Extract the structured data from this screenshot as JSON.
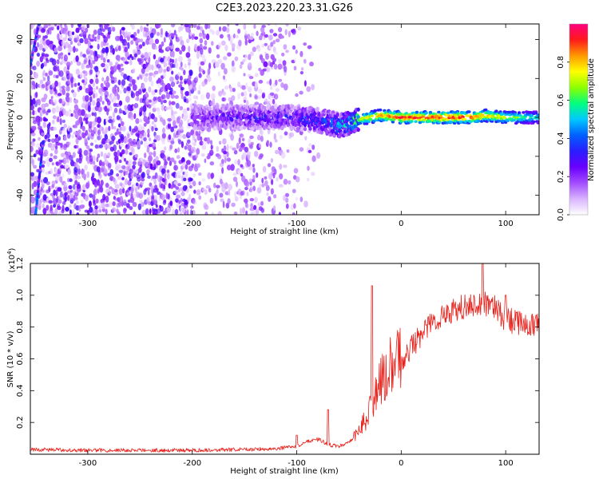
{
  "figure_title": "C2E3.2023.220.23.31.G26",
  "colors": {
    "snr_line": "#e8201a",
    "axis": "#000000",
    "spectrogram_background": "#ffffff",
    "colormap": [
      "#ffffff",
      "#d9b3ff",
      "#a34dff",
      "#6a00ff",
      "#2a1dff",
      "#0060ff",
      "#00c8ff",
      "#00ff7f",
      "#8cff00",
      "#ffff00",
      "#ff9900",
      "#ff1a1a",
      "#ff0080"
    ]
  },
  "chart_data": [
    {
      "type": "heatmap",
      "title": "C2E3.2023.220.23.31.G26",
      "xlabel": "Height of straight line (km)",
      "ylabel": "Frequency (Hz)",
      "xlim": [
        -355,
        132
      ],
      "ylim": [
        -50,
        48
      ],
      "x_ticks": [
        -300,
        -200,
        -100,
        0,
        100
      ],
      "y_ticks": [
        -40,
        -20,
        0,
        20,
        40
      ],
      "colorbar": {
        "label": "Normalized spectral amplitude",
        "range": [
          0,
          1
        ],
        "ticks": [
          "0.0",
          "0.2",
          "0.4",
          "0.6",
          "0.8"
        ]
      },
      "features": {
        "noise_region_x": [
          -355,
          -120
        ],
        "dense_noise_x": [
          -355,
          -200
        ],
        "signal_trace": {
          "x": [
            -200,
            -150,
            -100,
            -75,
            -60,
            -50,
            -40,
            -30,
            -20,
            0,
            20,
            40,
            60,
            70,
            80,
            100,
            132
          ],
          "y": [
            0,
            0,
            0,
            -2,
            -4,
            -3,
            -1,
            0,
            1,
            0,
            0,
            0,
            0,
            0,
            1,
            0,
            0
          ],
          "amplitude": [
            0.25,
            0.3,
            0.35,
            0.4,
            0.5,
            0.6,
            0.7,
            0.8,
            0.85,
            0.95,
            0.95,
            0.95,
            0.95,
            0.9,
            0.85,
            0.75,
            0.55
          ]
        },
        "diagonal_streak": {
          "x": [
            -350,
            -343
          ],
          "y": [
            -50,
            -13
          ]
        },
        "upper_streak": {
          "x": [
            -355,
            -347
          ],
          "y": [
            27,
            48
          ]
        }
      }
    },
    {
      "type": "line",
      "title": "",
      "xlabel": "Height of straight line (km)",
      "ylabel": "SNR (10 * v/v)",
      "y_multiplier_label": "(x10",
      "y_multiplier_exponent": "4",
      "y_multiplier_suffix": ")",
      "xlim": [
        -355,
        132
      ],
      "ylim": [
        0,
        1.2
      ],
      "x_ticks": [
        -300,
        -200,
        -100,
        0,
        100
      ],
      "y_ticks": [
        "0.2",
        "0.4",
        "0.6",
        "0.8",
        "1.0",
        "1.2"
      ],
      "series": [
        {
          "x": [
            -355,
            -300,
            -250,
            -200,
            -150,
            -120,
            -100,
            -90,
            -80,
            -70,
            -60,
            -50,
            -40,
            -30,
            -20,
            -10,
            0,
            10,
            20,
            30,
            40,
            50,
            60,
            70,
            80,
            90,
            100,
            110,
            120,
            132
          ],
          "y": [
            0.03,
            0.025,
            0.025,
            0.025,
            0.03,
            0.035,
            0.05,
            0.08,
            0.1,
            0.06,
            0.05,
            0.07,
            0.15,
            0.28,
            0.45,
            0.55,
            0.6,
            0.68,
            0.76,
            0.83,
            0.88,
            0.9,
            0.93,
            0.94,
            0.95,
            0.92,
            0.85,
            0.83,
            0.82,
            0.8
          ]
        }
      ],
      "spikes": [
        {
          "x": -28,
          "y": 1.06
        },
        {
          "x": 78,
          "y": 1.21
        },
        {
          "x": 100,
          "y": 1.0
        },
        {
          "x": -100,
          "y": 0.12
        },
        {
          "x": -70,
          "y": 0.28
        }
      ]
    }
  ]
}
